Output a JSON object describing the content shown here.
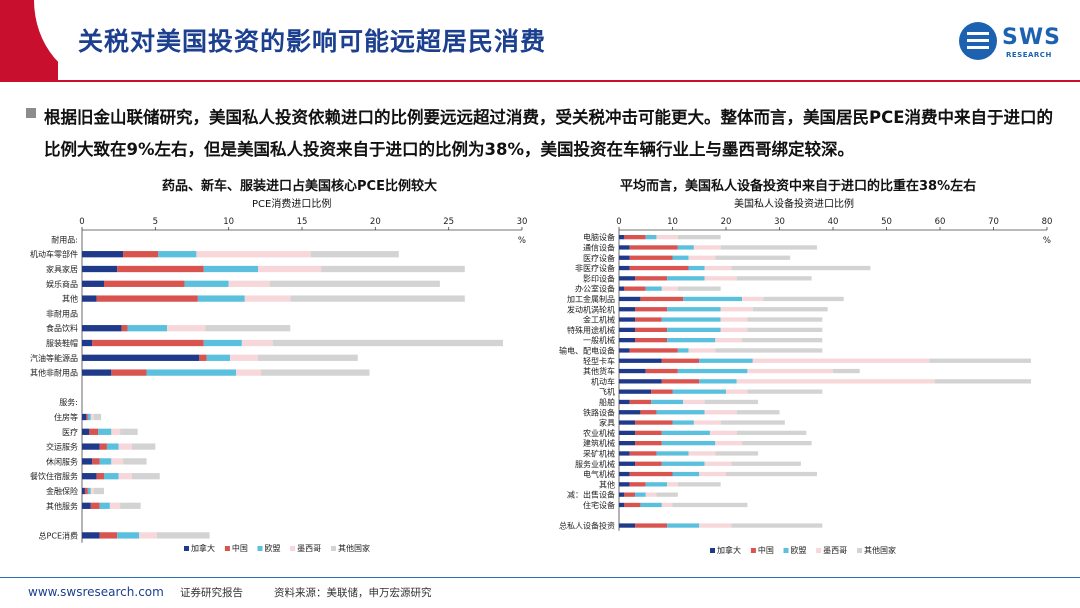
{
  "header": {
    "title": "关税对美国投资的影响可能远超居民消费",
    "logo_text": "SWS",
    "logo_sub": "RESEARCH"
  },
  "summary": "根据旧金山联储研究，美国私人投资依赖进口的比例要远远超过消费，受关税冲击可能更大。整体而言，美国居民PCE消费中来自于进口的比例大致在9%左右，但是美国私人投资来自于进口的比例为38%，美国投资在车辆行业上与墨西哥绑定较深。",
  "colors": {
    "canada": "#1f3a8a",
    "china": "#d9534f",
    "eu": "#5bc0de",
    "mexico": "#f8d7da",
    "other": "#d3d3d3",
    "brand_red": "#c8102e",
    "brand_blue": "#1c3f8f"
  },
  "chart_data": [
    {
      "type": "bar",
      "orientation": "horizontal",
      "stacked": true,
      "title": "药品、新车、服装进口占美国核心PCE比例较大",
      "xlabel": "PCE消费进口比例",
      "unit": "%",
      "xlim": [
        0,
        30
      ],
      "xticks": [
        0,
        5,
        10,
        15,
        20,
        25,
        30
      ],
      "legend_position": "bottom",
      "series_names": [
        "加拿大",
        "中国",
        "欧盟",
        "墨西哥",
        "其他国家"
      ],
      "categories": [
        "耐用品:",
        "机动车零部件",
        "家具家居",
        "娱乐商品",
        "其他",
        "非耐用品",
        "食品饮料",
        "服装鞋帽",
        "汽油等能源品",
        "其他非耐用品",
        "",
        "服务:",
        "住房等",
        "医疗",
        "交运服务",
        "休闲服务",
        "餐饮住宿服务",
        "金融保险",
        "其他服务",
        "",
        "总PCE消费"
      ],
      "values": [
        [
          0,
          0,
          0,
          0,
          0
        ],
        [
          2.8,
          2.4,
          2.6,
          7.8,
          6.0
        ],
        [
          2.4,
          5.9,
          3.7,
          4.3,
          9.8
        ],
        [
          1.5,
          5.5,
          3.0,
          2.8,
          11.6
        ],
        [
          1.0,
          6.9,
          3.2,
          3.1,
          11.9
        ],
        [
          0,
          0,
          0,
          0,
          0
        ],
        [
          2.7,
          0.4,
          2.7,
          2.6,
          5.8
        ],
        [
          0.7,
          7.6,
          2.6,
          2.1,
          15.7
        ],
        [
          8.0,
          0.5,
          1.6,
          1.9,
          6.8
        ],
        [
          2.0,
          2.4,
          6.1,
          1.7,
          7.4
        ],
        [
          0,
          0,
          0,
          0,
          0
        ],
        [
          0,
          0,
          0,
          0,
          0
        ],
        [
          0.3,
          0.1,
          0.2,
          0.2,
          0.5
        ],
        [
          0.5,
          0.6,
          0.9,
          0.6,
          1.2
        ],
        [
          1.2,
          0.5,
          0.8,
          0.9,
          1.6
        ],
        [
          0.7,
          0.5,
          0.8,
          0.8,
          1.6
        ],
        [
          1.0,
          0.5,
          1.0,
          0.9,
          1.9
        ],
        [
          0.2,
          0.2,
          0.2,
          0.2,
          0.7
        ],
        [
          0.6,
          0.6,
          0.7,
          0.7,
          1.4
        ],
        [
          0,
          0,
          0,
          0,
          0
        ],
        [
          1.2,
          1.2,
          1.5,
          1.2,
          3.6
        ]
      ]
    },
    {
      "type": "bar",
      "orientation": "horizontal",
      "stacked": true,
      "title": "平均而言，美国私人设备投资中来自于进口的比重在38%左右",
      "xlabel": "美国私人设备投资进口比例",
      "unit": "%",
      "xlim": [
        0,
        80
      ],
      "xticks": [
        0,
        10,
        20,
        30,
        40,
        50,
        60,
        70,
        80
      ],
      "legend_position": "bottom",
      "series_names": [
        "加拿大",
        "中国",
        "欧盟",
        "墨西哥",
        "其他国家"
      ],
      "categories": [
        "电脑设备",
        "通信设备",
        "医疗设备",
        "非医疗设备",
        "影印设备",
        "办公室设备",
        "加工金属制品",
        "发动机涡轮机",
        "金工机械",
        "特殊用途机械",
        "一般机械",
        "输电、配电设备",
        "轻型卡车",
        "其他货车",
        "机动车",
        "飞机",
        "船舶",
        "铁路设备",
        "家具",
        "农业机械",
        "建筑机械",
        "采矿机械",
        "服务业机械",
        "电气机械",
        "其他",
        "减：出售设备",
        "住宅设备",
        "",
        "总私人设备投资"
      ],
      "values": [
        [
          1,
          4,
          2,
          4,
          8
        ],
        [
          2,
          9,
          3,
          5,
          18
        ],
        [
          2,
          8,
          3,
          5,
          14
        ],
        [
          2,
          11,
          3,
          5,
          26
        ],
        [
          3,
          6,
          7,
          6,
          14
        ],
        [
          1,
          4,
          3,
          3,
          8
        ],
        [
          4,
          8,
          11,
          4,
          15
        ],
        [
          3,
          6,
          10,
          6,
          14
        ],
        [
          3,
          5,
          11,
          5,
          14
        ],
        [
          3,
          6,
          10,
          5,
          14
        ],
        [
          3,
          6,
          9,
          5,
          15
        ],
        [
          2,
          9,
          2,
          5,
          20
        ],
        [
          8,
          7,
          10,
          33,
          19
        ],
        [
          5,
          6,
          13,
          16,
          5
        ],
        [
          8,
          7,
          7,
          37,
          18
        ],
        [
          6,
          4,
          10,
          4,
          14
        ],
        [
          2,
          4,
          6,
          4,
          10
        ],
        [
          4,
          3,
          9,
          6,
          8
        ],
        [
          3,
          7,
          4,
          5,
          12
        ],
        [
          3,
          5,
          9,
          5,
          13
        ],
        [
          3,
          5,
          10,
          5,
          13
        ],
        [
          2,
          5,
          6,
          5,
          8
        ],
        [
          3,
          5,
          8,
          5,
          13
        ],
        [
          2,
          8,
          5,
          5,
          17
        ],
        [
          2,
          3,
          4,
          2,
          8
        ],
        [
          1,
          2,
          2,
          2,
          4
        ],
        [
          1,
          3,
          4,
          2,
          14
        ],
        [
          0,
          0,
          0,
          0,
          0
        ],
        [
          3,
          6,
          6,
          6,
          17
        ]
      ]
    }
  ],
  "footer": {
    "url": "www.swsresearch.com",
    "doc_type": "证券研究报告",
    "source": "资料来源：美联储，申万宏源研究"
  }
}
